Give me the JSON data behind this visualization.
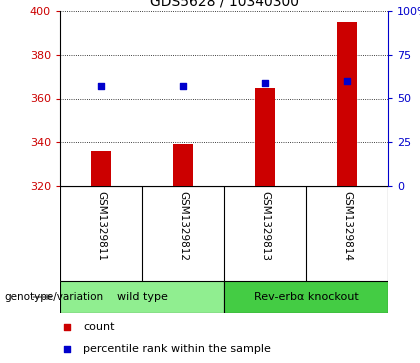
{
  "title": "GDS5628 / 10340300",
  "samples": [
    "GSM1329811",
    "GSM1329812",
    "GSM1329813",
    "GSM1329814"
  ],
  "counts": [
    336,
    339,
    365,
    395
  ],
  "percentiles": [
    57,
    57,
    59,
    60
  ],
  "y_min": 320,
  "y_max": 400,
  "y_ticks": [
    320,
    340,
    360,
    380,
    400
  ],
  "right_y_ticks": [
    0,
    25,
    50,
    75,
    100
  ],
  "right_y_labels": [
    "0",
    "25",
    "50",
    "75",
    "100%"
  ],
  "bar_color": "#cc0000",
  "dot_color": "#0000cc",
  "genotype_groups": [
    {
      "label": "wild type",
      "samples": [
        0,
        1
      ],
      "color": "#90ee90"
    },
    {
      "label": "Rev-erbα knockout",
      "samples": [
        2,
        3
      ],
      "color": "#44cc44"
    }
  ],
  "genotype_label": "genotype/variation",
  "legend_items": [
    {
      "color": "#cc0000",
      "label": "count"
    },
    {
      "color": "#0000cc",
      "label": "percentile rank within the sample"
    }
  ],
  "xticklabel_area_color": "#c8c8c8",
  "title_fontsize": 10,
  "tick_fontsize": 8,
  "bar_width": 0.25
}
